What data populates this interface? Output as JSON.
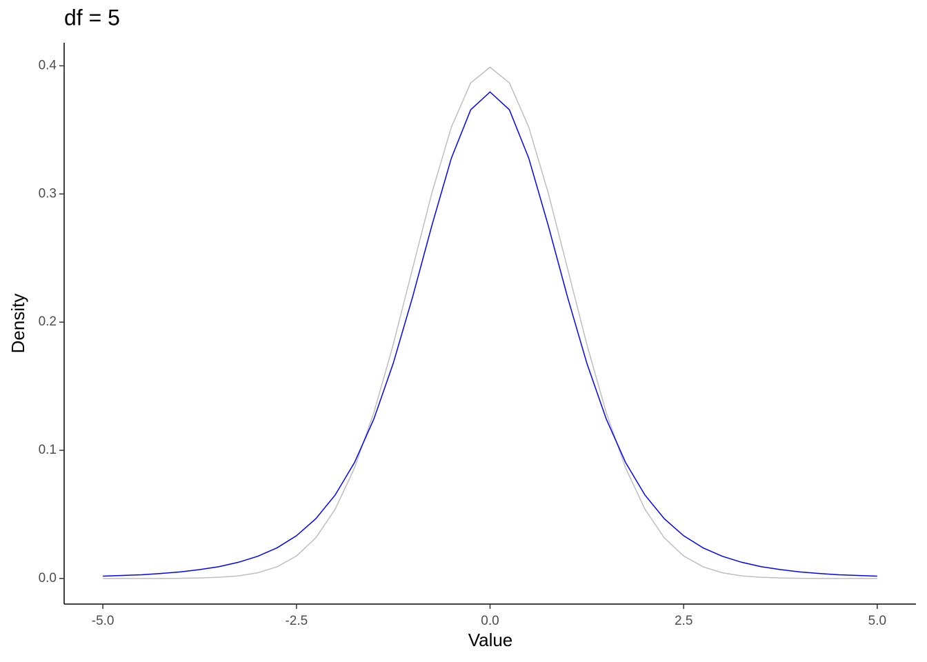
{
  "chart_data": {
    "type": "line",
    "title": "df = 5",
    "xlabel": "Value",
    "ylabel": "Density",
    "x": [
      -5,
      -4.75,
      -4.5,
      -4.25,
      -4,
      -3.75,
      -3.5,
      -3.25,
      -3,
      -2.75,
      -2.5,
      -2.25,
      -2,
      -1.75,
      -1.5,
      -1.25,
      -1,
      -0.75,
      -0.5,
      -0.25,
      0,
      0.25,
      0.5,
      0.75,
      1,
      1.25,
      1.5,
      1.75,
      2,
      2.25,
      2.5,
      2.75,
      3,
      3.25,
      3.5,
      3.75,
      4,
      4.25,
      4.5,
      4.75,
      5
    ],
    "series": [
      {
        "color": "#bebebe",
        "values": [
          0,
          0,
          0,
          0,
          0.0001,
          0.0004,
          0.0009,
          0.002,
          0.0044,
          0.0091,
          0.0175,
          0.0317,
          0.054,
          0.0863,
          0.1295,
          0.1826,
          0.242,
          0.3011,
          0.3521,
          0.3867,
          0.3989,
          0.3867,
          0.3521,
          0.3011,
          0.242,
          0.1826,
          0.1295,
          0.0863,
          0.054,
          0.0317,
          0.0175,
          0.0091,
          0.0044,
          0.002,
          0.0009,
          0.0004,
          0.0001,
          0,
          0,
          0,
          0
        ]
      },
      {
        "color": "#0000ff",
        "values": [
          0.0018,
          0.0023,
          0.0029,
          0.0039,
          0.0051,
          0.0069,
          0.0092,
          0.0126,
          0.0173,
          0.0239,
          0.0333,
          0.0466,
          0.0651,
          0.0905,
          0.1245,
          0.1679,
          0.2197,
          0.2757,
          0.3279,
          0.3657,
          0.3796,
          0.3657,
          0.3279,
          0.2757,
          0.2197,
          0.1679,
          0.1245,
          0.0905,
          0.0651,
          0.0466,
          0.0333,
          0.0239,
          0.0173,
          0.0126,
          0.0092,
          0.0069,
          0.0051,
          0.0039,
          0.0029,
          0.0023,
          0.0018
        ]
      }
    ],
    "xlim": [
      -5.5,
      5.5
    ],
    "xticks": [
      {
        "value": -5,
        "label": "-5.0"
      },
      {
        "value": -2.5,
        "label": "-2.5"
      },
      {
        "value": 0,
        "label": "0.0"
      },
      {
        "value": 2.5,
        "label": "2.5"
      },
      {
        "value": 5,
        "label": "5.0"
      }
    ],
    "ylim": [
      -0.02,
      0.418
    ],
    "yticks": [
      {
        "value": 0,
        "label": "0.0"
      },
      0.1,
      0.2,
      0.3,
      0.4
    ]
  }
}
